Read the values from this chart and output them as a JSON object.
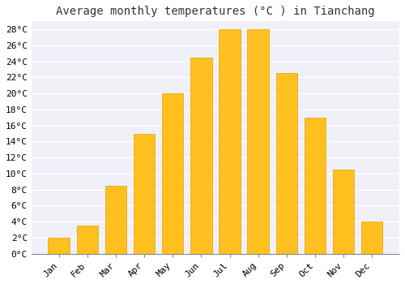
{
  "title": "Average monthly temperatures (°C ) in Tianchang",
  "months": [
    "Jan",
    "Feb",
    "Mar",
    "Apr",
    "May",
    "Jun",
    "Jul",
    "Aug",
    "Sep",
    "Oct",
    "Nov",
    "Dec"
  ],
  "values": [
    2.0,
    3.5,
    8.5,
    15.0,
    20.0,
    24.5,
    28.0,
    28.0,
    22.5,
    17.0,
    10.5,
    4.0
  ],
  "bar_color_main": "#FFC020",
  "bar_color_edge": "#E8A000",
  "ylim": [
    0,
    29
  ],
  "yticks": [
    0,
    2,
    4,
    6,
    8,
    10,
    12,
    14,
    16,
    18,
    20,
    22,
    24,
    26,
    28
  ],
  "figure_background": "#ffffff",
  "plot_background": "#f0f0f8",
  "grid_color": "#ffffff",
  "title_fontsize": 10,
  "tick_fontsize": 8,
  "bar_width": 0.75
}
